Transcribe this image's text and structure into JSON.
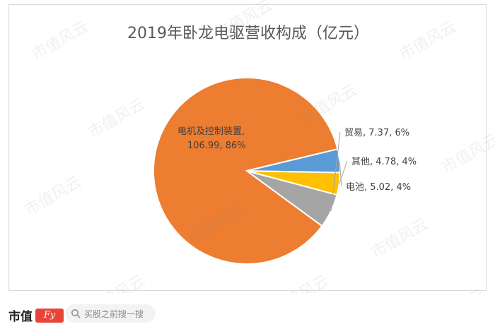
{
  "chart_data": {
    "type": "pie",
    "title": "2019年卧龙电驱营收构成（亿元）",
    "slices": [
      {
        "label_line1": "电机及控制装置,",
        "label_line2": "106.99, 86%",
        "name": "电机及控制装置",
        "value": 106.99,
        "percent": 86,
        "color": "#ED7D31"
      },
      {
        "label_line1": "贸易, 7.37, 6%",
        "label_line2": "",
        "name": "贸易",
        "value": 7.37,
        "percent": 6,
        "color": "#A5A5A5"
      },
      {
        "label_line1": "其他, 4.78, 4%",
        "label_line2": "",
        "name": "其他",
        "value": 4.78,
        "percent": 4,
        "color": "#FFC000"
      },
      {
        "label_line1": "电池, 5.02, 4%",
        "label_line2": "",
        "name": "电池",
        "value": 5.02,
        "percent": 4,
        "color": "#5B9BD5"
      }
    ]
  },
  "watermark": "市值风云",
  "footer": {
    "brand_name": "市值",
    "search_placeholder": "买股之前搜一搜"
  }
}
